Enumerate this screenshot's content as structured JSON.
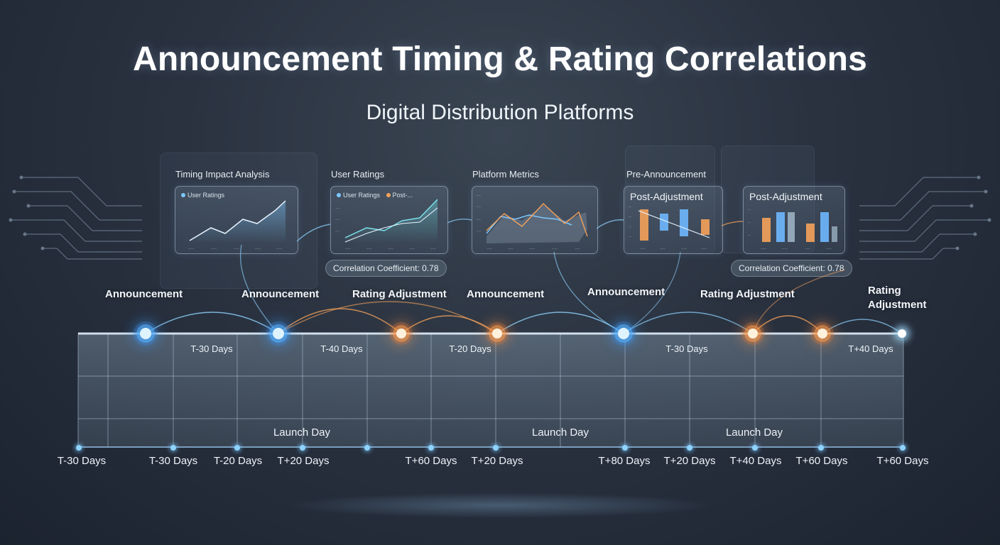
{
  "title": "Announcement Timing & Rating Correlations",
  "subtitle": "Digital Distribution Platforms",
  "colors": {
    "blue_accent": "#7cc8ff",
    "orange_accent": "#f5a25a",
    "grid": "#b8d4e8"
  },
  "panels": [
    {
      "title": "Timing Impact Analysis",
      "legend": [
        {
          "label": "User Ratings",
          "color": "#7cc8ff"
        }
      ]
    },
    {
      "title": "User Ratings",
      "legend": [
        {
          "label": "User Ratings",
          "color": "#7cc8ff"
        },
        {
          "label": "Post-...",
          "color": "#f5a25a"
        }
      ]
    },
    {
      "title": "Platform Metrics"
    },
    {
      "title": "Pre-Announcement",
      "card_heading": "Post-Adjustment"
    },
    {
      "card_heading": "Post-Adjustment"
    }
  ],
  "correlation_labels": [
    "Correlation Coefficient: 0.78",
    "Correlation Coefficient: 0.78"
  ],
  "events": [
    {
      "label": "Announcement",
      "type": "blue"
    },
    {
      "label": "Announcement",
      "type": "blue"
    },
    {
      "label": "Rating Adjustment",
      "type": "orange"
    },
    {
      "label": "Announcement",
      "type": "orange"
    },
    {
      "label": "Announcement",
      "type": "blue"
    },
    {
      "label": "Rating Adjustment",
      "type": "orange"
    },
    {
      "label": "Rating",
      "label2": "Adjustment",
      "type": "end"
    }
  ],
  "timeline_ticks": [
    "T-30 Days",
    "T-40 Days",
    "T-20 Days",
    "T-30 Days",
    "T+40 Days"
  ],
  "launch_labels": [
    "Launch Day",
    "Launch Day",
    "Launch Day"
  ],
  "bottom_axis": [
    "T-30 Days",
    "T-30 Days",
    "T-20 Days",
    "T+20 Days",
    "T+60 Days",
    "T+20 Days",
    "T+80 Days",
    "T+20 Days",
    "T+40 Days",
    "T+60 Days",
    "T+60 Days"
  ]
}
